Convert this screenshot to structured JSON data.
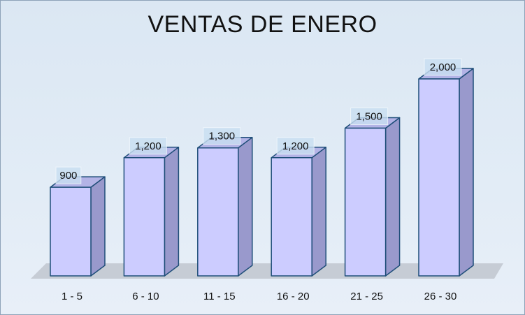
{
  "chart_data": {
    "type": "bar",
    "title": "VENTAS DE ENERO",
    "categories": [
      "1 - 5",
      "6 - 10",
      "11 - 15",
      "16 - 20",
      "21 - 25",
      "26 - 30"
    ],
    "values": [
      900,
      1200,
      1300,
      1200,
      1500,
      2000
    ],
    "value_labels": [
      "900",
      "1,200",
      "1,300",
      "1,200",
      "1,500",
      "2,000"
    ],
    "ylim": [
      0,
      2400
    ],
    "grid": false,
    "legend": "none",
    "three_d": true
  },
  "colors": {
    "bar_front": "#ccccff",
    "bar_side": "#9999cc",
    "bar_top": "#b3b3e6",
    "bar_outline": "#1f4e79",
    "floor": "#c0c6cf",
    "label_box": "#c9dff2"
  }
}
